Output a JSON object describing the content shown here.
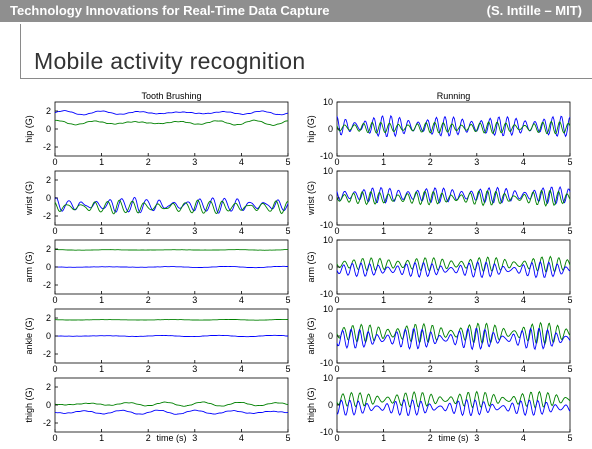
{
  "header": {
    "left_text": "Technology Innovations for Real-Time Data Capture",
    "right_text": "(S. Intille – MIT)"
  },
  "slide": {
    "title": "Mobile activity recognition"
  },
  "colors": {
    "header_bg": "#8f8f8f",
    "series_blue": "#0000ff",
    "series_green": "#008000"
  },
  "chart_data": [
    {
      "type": "line",
      "title": "Tooth Brushing",
      "xlabel": "time (s)",
      "xlim": [
        0,
        5
      ],
      "xticks": [
        "0",
        "1",
        "2",
        "3",
        "4",
        "5"
      ],
      "panels": [
        {
          "ylabel": "hip (G)",
          "ylim": [
            -3,
            3
          ],
          "yticks": [
            "2",
            "0",
            "-2"
          ],
          "series": [
            {
              "color": "blue",
              "mean": 1.8,
              "amp": 0.25,
              "freq": 3
            },
            {
              "color": "green",
              "mean": 0.7,
              "amp": 0.3,
              "freq": 3
            }
          ]
        },
        {
          "ylabel": "wrist (G)",
          "ylim": [
            -3,
            3
          ],
          "yticks": [
            "2",
            "0",
            "-2"
          ],
          "series": [
            {
              "color": "blue",
              "mean": -0.8,
              "amp": 0.9,
              "freq": 9
            },
            {
              "color": "green",
              "mean": -1.0,
              "amp": 0.8,
              "freq": 9
            }
          ]
        },
        {
          "ylabel": "arm (G)",
          "ylim": [
            -3,
            3
          ],
          "yticks": [
            "2",
            "0",
            "-2"
          ],
          "series": [
            {
              "color": "green",
              "mean": 1.9,
              "amp": 0.05,
              "freq": 2
            },
            {
              "color": "blue",
              "mean": 0.0,
              "amp": 0.08,
              "freq": 2
            }
          ]
        },
        {
          "ylabel": "ankle (G)",
          "ylim": [
            -3,
            3
          ],
          "yticks": [
            "2",
            "0",
            "-2"
          ],
          "series": [
            {
              "color": "green",
              "mean": 1.8,
              "amp": 0.05,
              "freq": 2
            },
            {
              "color": "blue",
              "mean": 0.0,
              "amp": 0.08,
              "freq": 2
            }
          ]
        },
        {
          "ylabel": "thigh (G)",
          "ylim": [
            -3,
            3
          ],
          "yticks": [
            "2",
            "0",
            "-2"
          ],
          "series": [
            {
              "color": "green",
              "mean": 0.1,
              "amp": 0.25,
              "freq": 3
            },
            {
              "color": "blue",
              "mean": -0.8,
              "amp": 0.25,
              "freq": 3
            }
          ]
        }
      ]
    },
    {
      "type": "line",
      "title": "Running",
      "xlabel": "time (s)",
      "xlim": [
        0,
        5
      ],
      "xticks": [
        "0",
        "1",
        "2",
        "3",
        "4",
        "5"
      ],
      "panels": [
        {
          "ylabel": "hip (G)",
          "ylim": [
            -10,
            10
          ],
          "yticks": [
            "10",
            "0",
            "-10"
          ],
          "series": [
            {
              "color": "blue",
              "mean": 1.0,
              "amp": 4.5,
              "freq": 13
            },
            {
              "color": "green",
              "mean": 0.5,
              "amp": 2.5,
              "freq": 13
            }
          ]
        },
        {
          "ylabel": "wrist (G)",
          "ylim": [
            -10,
            10
          ],
          "yticks": [
            "10",
            "0",
            "-10"
          ],
          "series": [
            {
              "color": "blue",
              "mean": 1.0,
              "amp": 3.5,
              "freq": 13
            },
            {
              "color": "green",
              "mean": 0.0,
              "amp": 3.0,
              "freq": 13
            }
          ]
        },
        {
          "ylabel": "arm (G)",
          "ylim": [
            -10,
            10
          ],
          "yticks": [
            "10",
            "0",
            "-10"
          ],
          "series": [
            {
              "color": "green",
              "mean": 1.0,
              "amp": 3.0,
              "freq": 13
            },
            {
              "color": "blue",
              "mean": -1.0,
              "amp": 3.0,
              "freq": 13
            }
          ]
        },
        {
          "ylabel": "ankle (G)",
          "ylim": [
            -10,
            10
          ],
          "yticks": [
            "10",
            "0",
            "-10"
          ],
          "series": [
            {
              "color": "green",
              "mean": 1.0,
              "amp": 4.0,
              "freq": 13
            },
            {
              "color": "blue",
              "mean": -1.0,
              "amp": 4.0,
              "freq": 13
            }
          ]
        },
        {
          "ylabel": "thigh (G)",
          "ylim": [
            -10,
            10
          ],
          "yticks": [
            "10",
            "0",
            "-10"
          ],
          "series": [
            {
              "color": "green",
              "mean": 2.0,
              "amp": 3.0,
              "freq": 13
            },
            {
              "color": "blue",
              "mean": -1.0,
              "amp": 3.0,
              "freq": 13
            }
          ]
        }
      ]
    }
  ]
}
